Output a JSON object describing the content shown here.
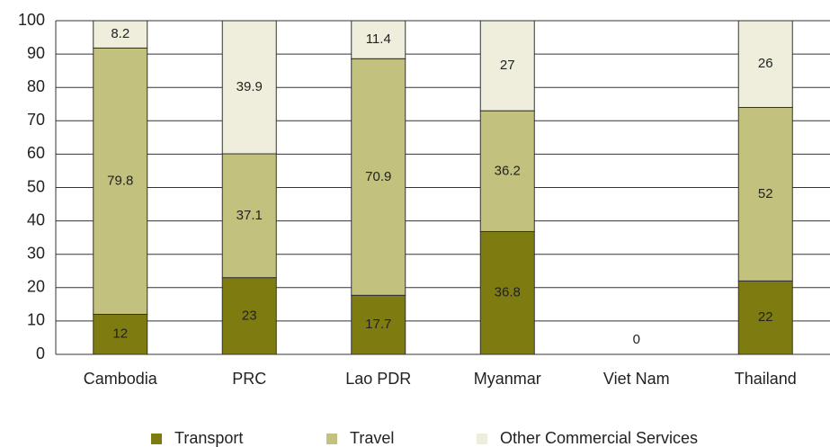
{
  "chart_data": {
    "type": "stacked_bar",
    "categories": [
      "Cambodia",
      "PRC",
      "Lao PDR",
      "Myanmar",
      "Viet Nam",
      "Thailand"
    ],
    "series": [
      {
        "name": "Transport",
        "color": "#7e7c10",
        "values": [
          12,
          23,
          17.7,
          36.8,
          0,
          22
        ]
      },
      {
        "name": "Travel",
        "color": "#c2c17e",
        "values": [
          79.8,
          37.1,
          70.9,
          36.2,
          null,
          52
        ]
      },
      {
        "name": "Other Commercial Services",
        "color": "#efeedd",
        "values": [
          8.2,
          39.9,
          11.4,
          27,
          null,
          26
        ]
      }
    ],
    "ylim": [
      0,
      100
    ],
    "yticks": [
      0,
      10,
      20,
      30,
      40,
      50,
      60,
      70,
      80,
      90,
      100
    ],
    "grid": true,
    "legend": "bottom"
  }
}
